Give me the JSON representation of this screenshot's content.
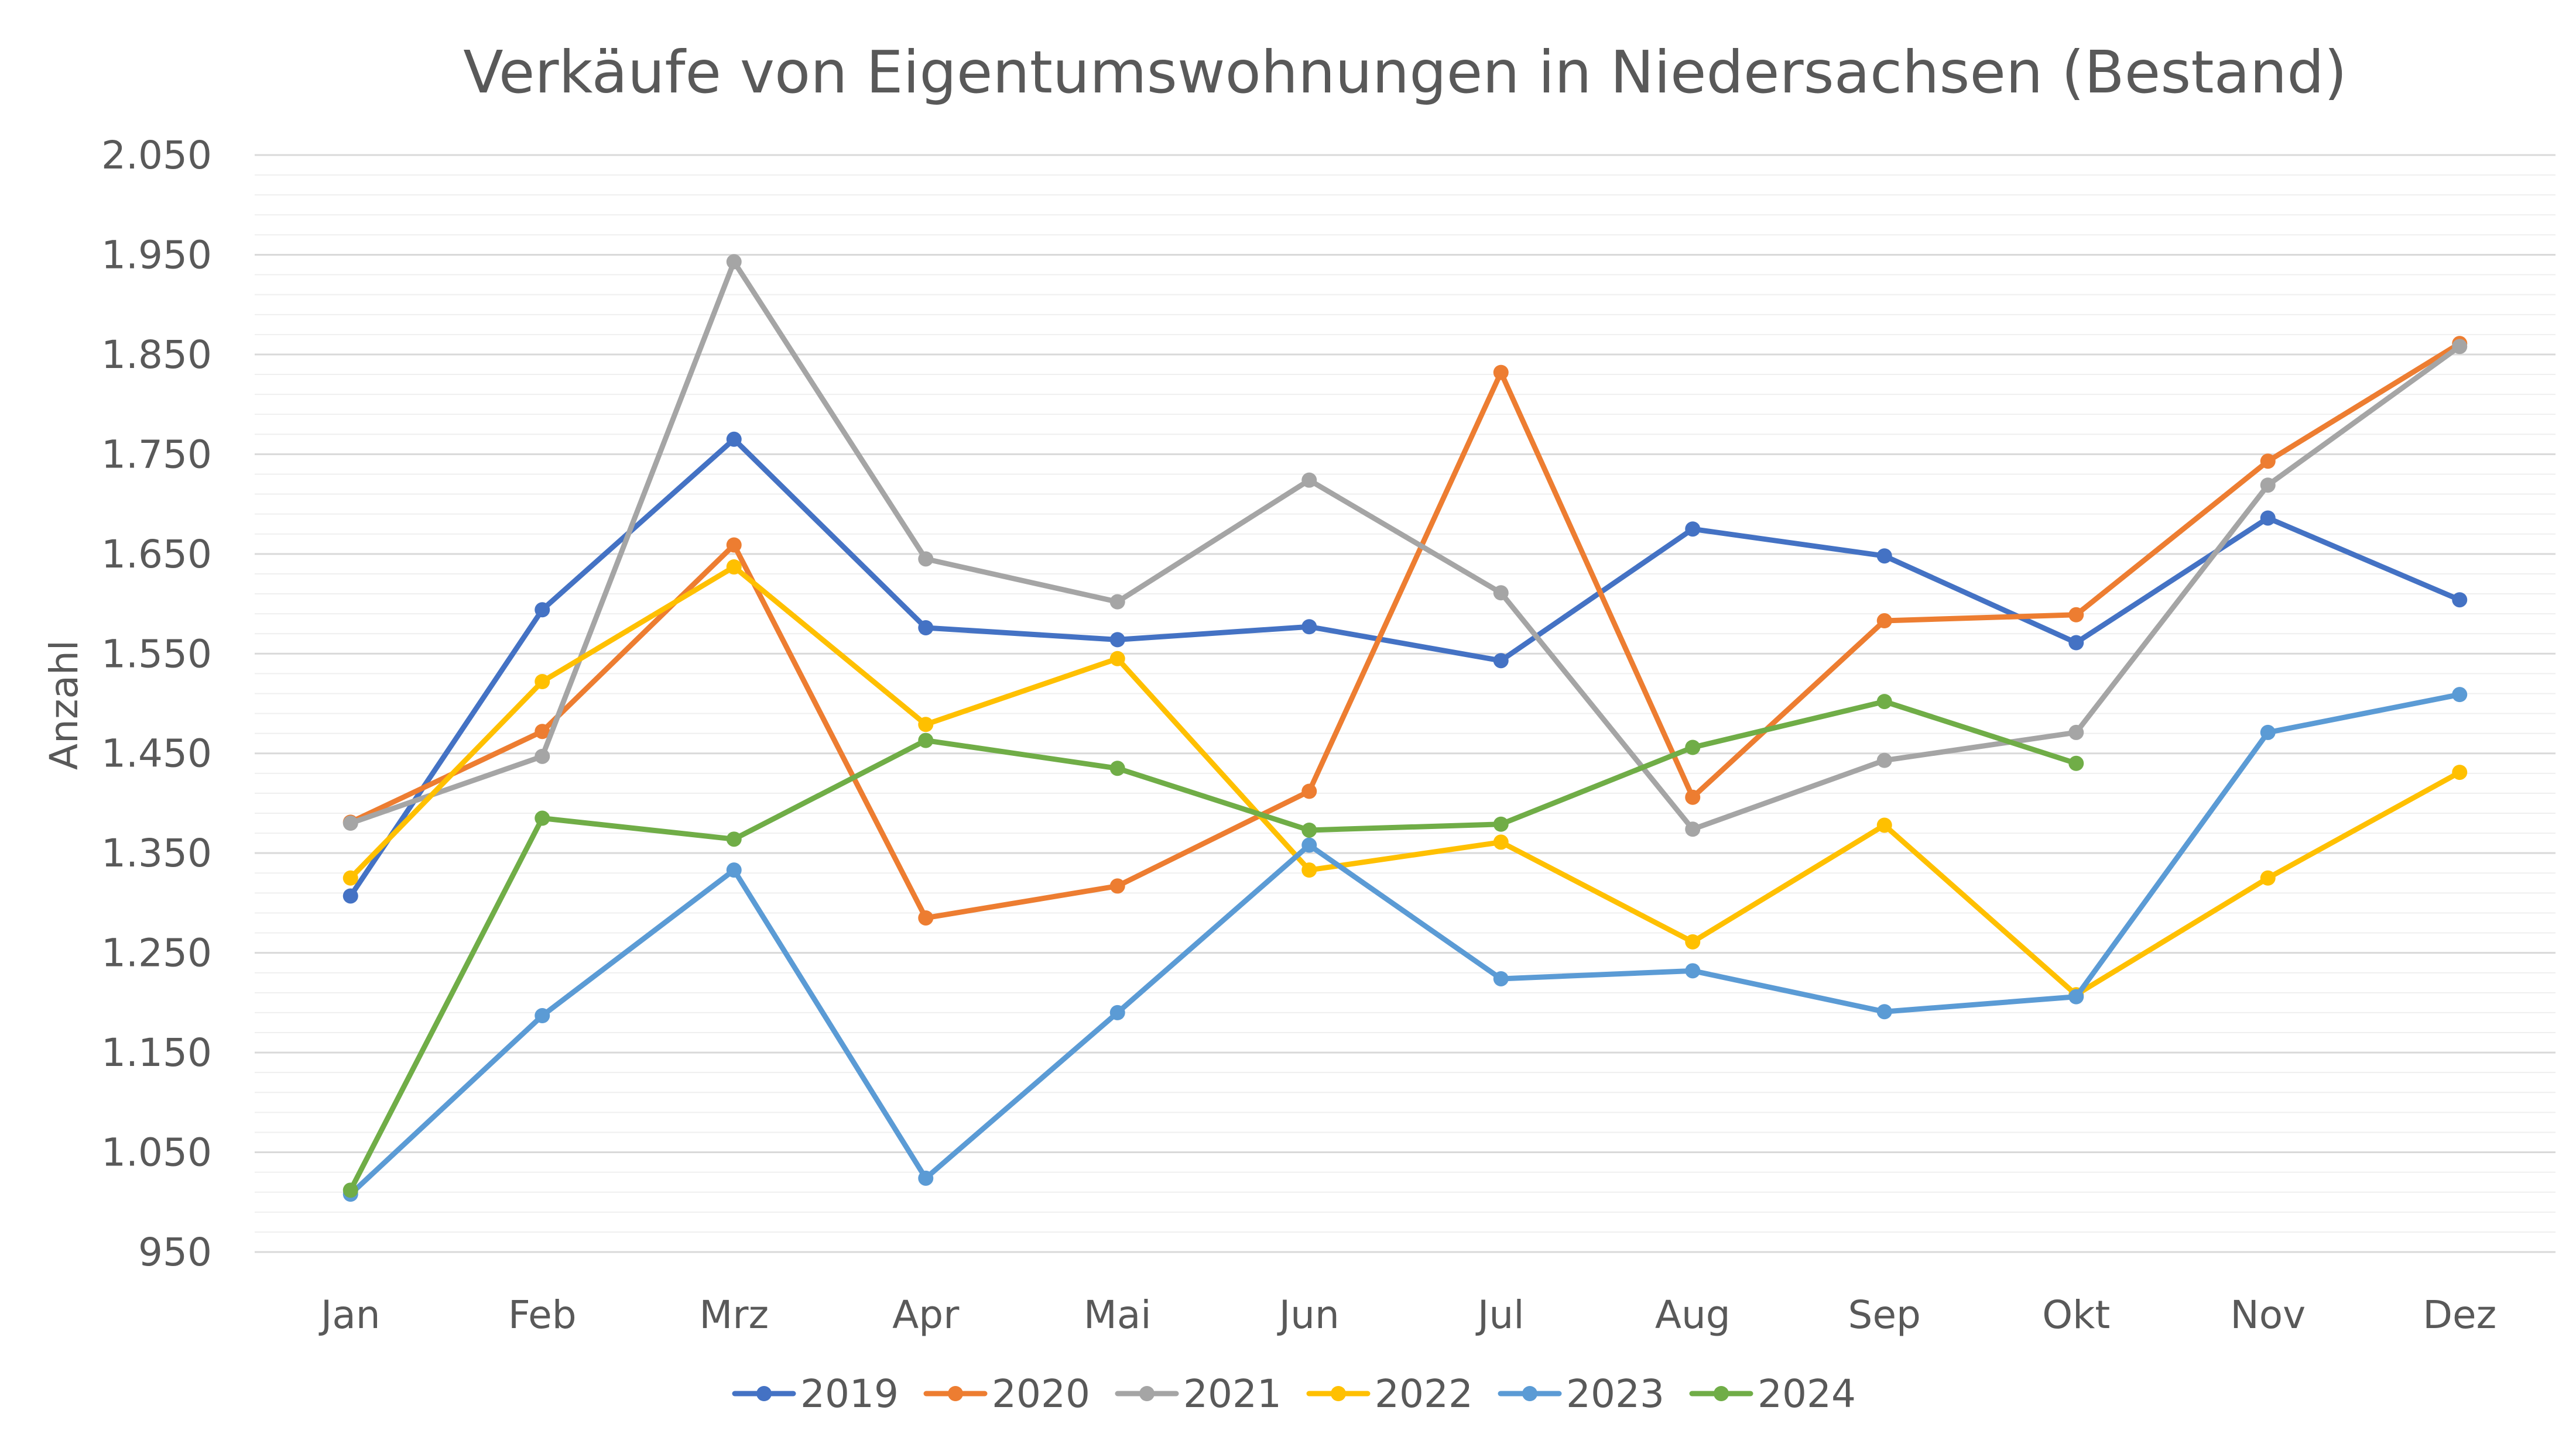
{
  "chart_data": {
    "type": "line",
    "title": "Verkäufe von Eigentumswohnungen in Niedersachsen (Bestand)",
    "xlabel": "",
    "ylabel": "Anzahl",
    "categories": [
      "Jan",
      "Feb",
      "Mrz",
      "Apr",
      "Mai",
      "Jun",
      "Jul",
      "Aug",
      "Sep",
      "Okt",
      "Nov",
      "Dez"
    ],
    "ylim": [
      950,
      2050
    ],
    "yticks": [
      950,
      1050,
      1150,
      1250,
      1350,
      1450,
      1550,
      1650,
      1750,
      1850,
      1950,
      2050
    ],
    "ytick_labels": [
      "950",
      "1.050",
      "1.150",
      "1.250",
      "1.350",
      "1.450",
      "1.550",
      "1.650",
      "1.750",
      "1.850",
      "1.950",
      "2.050"
    ],
    "grid": true,
    "legend_position": "bottom",
    "series": [
      {
        "name": "2019",
        "color": "#4472C4",
        "values": [
          1307,
          1594,
          1765,
          1576,
          1564,
          1577,
          1543,
          1675,
          1648,
          1561,
          1686,
          1604
        ]
      },
      {
        "name": "2020",
        "color": "#ED7D31",
        "values": [
          1381,
          1472,
          1659,
          1285,
          1317,
          1412,
          1832,
          1406,
          1583,
          1589,
          1743,
          1861
        ]
      },
      {
        "name": "2021",
        "color": "#A5A5A5",
        "values": [
          1380,
          1447,
          1943,
          1645,
          1602,
          1724,
          1611,
          1374,
          1443,
          1471,
          1719,
          1858
        ]
      },
      {
        "name": "2022",
        "color": "#FFC000",
        "values": [
          1325,
          1522,
          1637,
          1479,
          1545,
          1333,
          1361,
          1261,
          1378,
          1208,
          1325,
          1431
        ]
      },
      {
        "name": "2023",
        "color": "#5B9BD5",
        "values": [
          1008,
          1187,
          1333,
          1024,
          1190,
          1358,
          1224,
          1232,
          1191,
          1206,
          1471,
          1509
        ]
      },
      {
        "name": "2024",
        "color": "#70AD47",
        "values": [
          1012,
          1385,
          1364,
          1463,
          1435,
          1373,
          1379,
          1456,
          1502,
          1440,
          null,
          null
        ]
      }
    ]
  }
}
